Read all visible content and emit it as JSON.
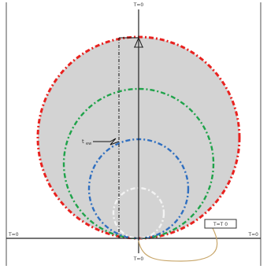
{
  "title": "",
  "labels": {
    "axis_top": "T=0",
    "axis_bottom": "T=0",
    "axis_left": "T=0",
    "axis_right": "T=0",
    "t_label": "t",
    "t_subscript": "ew",
    "box_label": "T=T 0"
  },
  "colors": {
    "frame": "#6f6f6f",
    "axis": "#222222",
    "disk_fill": "#d3d3d3",
    "circle_outer": "#e8221f",
    "circle_second": "#1fa34a",
    "circle_third": "#2f6fc0",
    "circle_inner": "#f3f3f3",
    "dashed_line": "#111111",
    "curve": "#c8a66a",
    "text": "#333333"
  }
}
